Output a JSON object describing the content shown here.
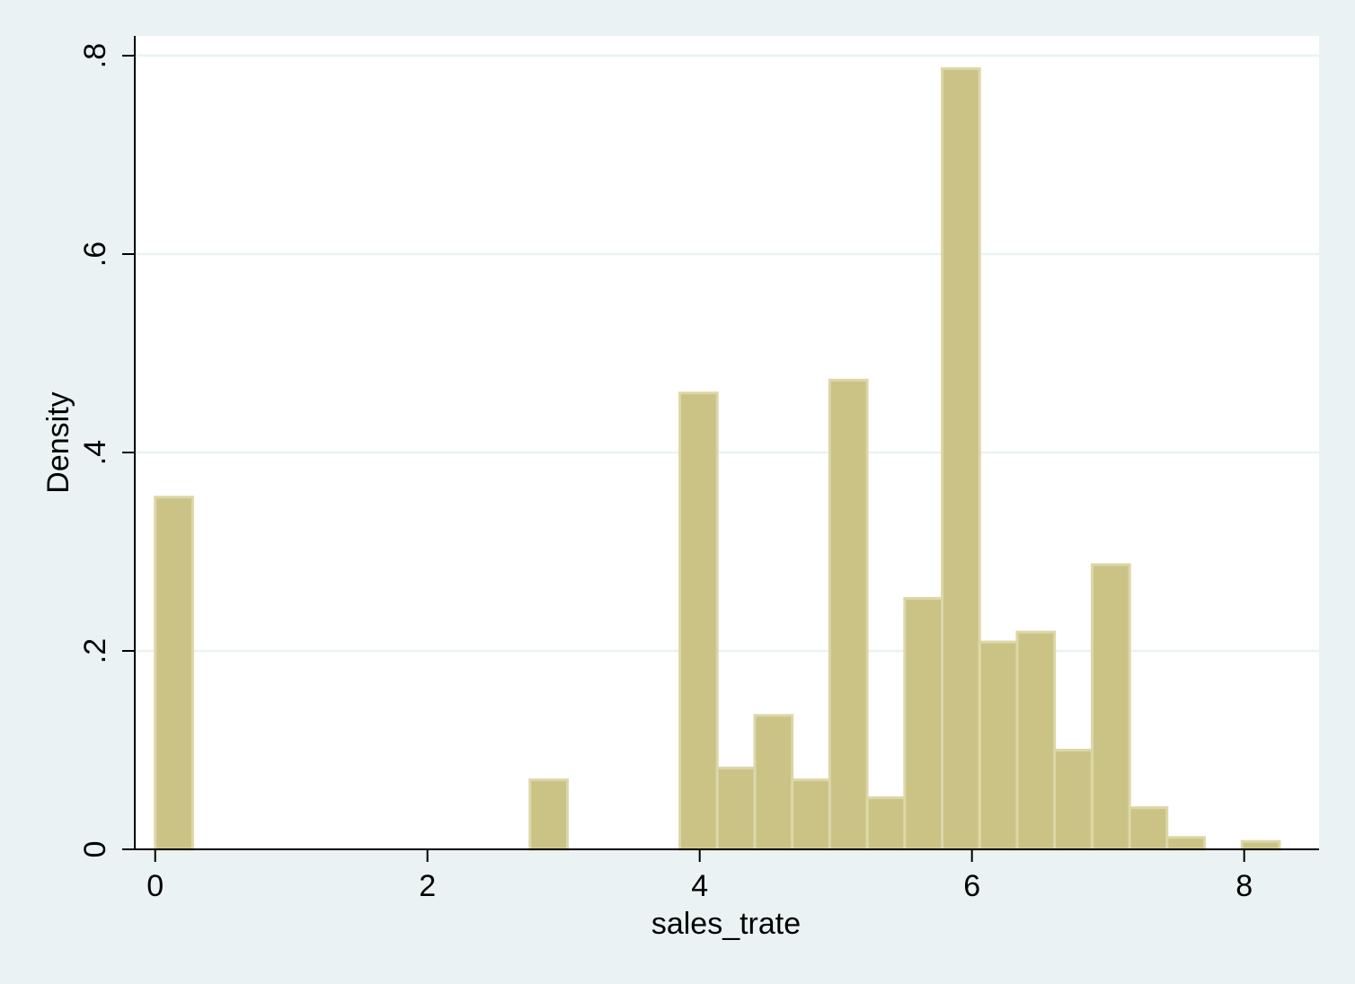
{
  "chart_data": {
    "type": "bar",
    "subtype": "histogram",
    "title": "",
    "xlabel": "sales_trate",
    "ylabel": "Density",
    "xlim": [
      -0.15,
      8.55
    ],
    "ylim": [
      0,
      0.8
    ],
    "xticks": [
      {
        "value": 0,
        "label": "0"
      },
      {
        "value": 2,
        "label": "2"
      },
      {
        "value": 4,
        "label": "4"
      },
      {
        "value": 6,
        "label": "6"
      },
      {
        "value": 8,
        "label": "8"
      }
    ],
    "yticks": [
      {
        "value": 0,
        "label": "0"
      },
      {
        "value": 0.2,
        "label": ".2"
      },
      {
        "value": 0.4,
        "label": ".4"
      },
      {
        "value": 0.6,
        "label": ".6"
      },
      {
        "value": 0.8,
        "label": ".8"
      }
    ],
    "grid": true,
    "bin_width": 0.2753,
    "bins": [
      {
        "start": 0.0,
        "density": 0.355
      },
      {
        "start": 2.753,
        "density": 0.07
      },
      {
        "start": 3.854,
        "density": 0.46
      },
      {
        "start": 4.129,
        "density": 0.082
      },
      {
        "start": 4.405,
        "density": 0.135
      },
      {
        "start": 4.68,
        "density": 0.07
      },
      {
        "start": 4.955,
        "density": 0.473
      },
      {
        "start": 5.231,
        "density": 0.052
      },
      {
        "start": 5.506,
        "density": 0.253
      },
      {
        "start": 5.781,
        "density": 0.787
      },
      {
        "start": 6.057,
        "density": 0.209
      },
      {
        "start": 6.332,
        "density": 0.219
      },
      {
        "start": 6.607,
        "density": 0.1
      },
      {
        "start": 6.883,
        "density": 0.287
      },
      {
        "start": 7.158,
        "density": 0.042
      },
      {
        "start": 7.433,
        "density": 0.012
      },
      {
        "start": 7.984,
        "density": 0.008
      }
    ],
    "colors": {
      "background": "#eaf2f3",
      "plot_area": "#ffffff",
      "bar_fill": "#cbc386",
      "bar_outline": "#dcd7a8",
      "grid": "#eaf2f3",
      "axis": "#000000"
    }
  }
}
